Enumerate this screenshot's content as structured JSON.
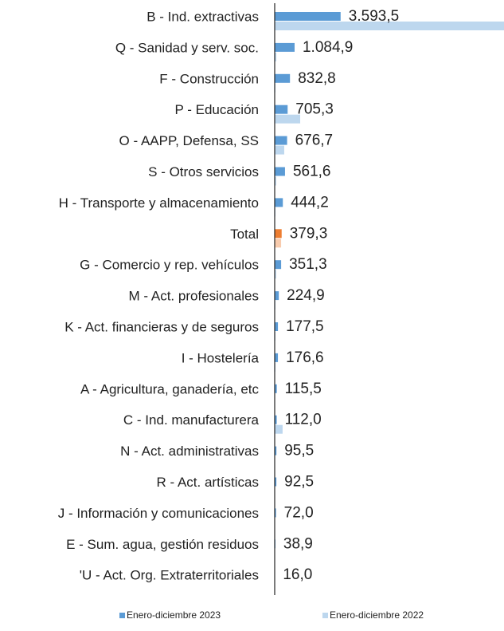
{
  "chart_data": {
    "type": "hbar",
    "categories": [
      "B - Ind. extractivas",
      "Q - Sanidad y serv. soc.",
      "F - Construcción",
      "P - Educación",
      "O - AAPP, Defensa, SS",
      "S - Otros servicios",
      "H - Transporte y almacenamiento",
      "Total",
      "G - Comercio y rep. vehículos",
      "M - Act. profesionales",
      "K - Act. financieras y de seguros",
      "I - Hostelería",
      "A - Agricultura, ganadería, etc",
      "C - Ind. manufacturera",
      "N - Act. administrativas",
      "R - Act. artísticas",
      "J - Información y comunicaciones",
      "E - Sum. agua, gestión residuos",
      "'U - Act. Org. Extraterritoriales"
    ],
    "series": [
      {
        "name": "Enero-diciembre 2023",
        "color": "#5b9bd5",
        "highlight_color": "#ed7d31",
        "values": [
          3593.5,
          1084.9,
          832.8,
          705.3,
          676.7,
          561.6,
          444.2,
          379.3,
          351.3,
          224.9,
          177.5,
          176.6,
          115.5,
          112.0,
          95.5,
          92.5,
          72.0,
          38.9,
          16.0
        ],
        "value_labels": [
          "3.593,5",
          "1.084,9",
          "832,8",
          "705,3",
          "676,7",
          "561,6",
          "444,2",
          "379,3",
          "351,3",
          "224,9",
          "177,5",
          "176,6",
          "115,5",
          "112,0",
          "95,5",
          "92,5",
          "72,0",
          "38,9",
          "16,0"
        ]
      },
      {
        "name": "Enero-diciembre 2022",
        "color": "#bdd7ee",
        "highlight_color": "#f8cbad",
        "values": [
          12500,
          90,
          40,
          1390,
          520,
          80,
          40,
          350,
          80,
          40,
          40,
          40,
          20,
          430,
          20,
          20,
          20,
          20,
          10
        ]
      }
    ],
    "highlight_index": 7,
    "xlim": [
      0,
      12500
    ]
  }
}
